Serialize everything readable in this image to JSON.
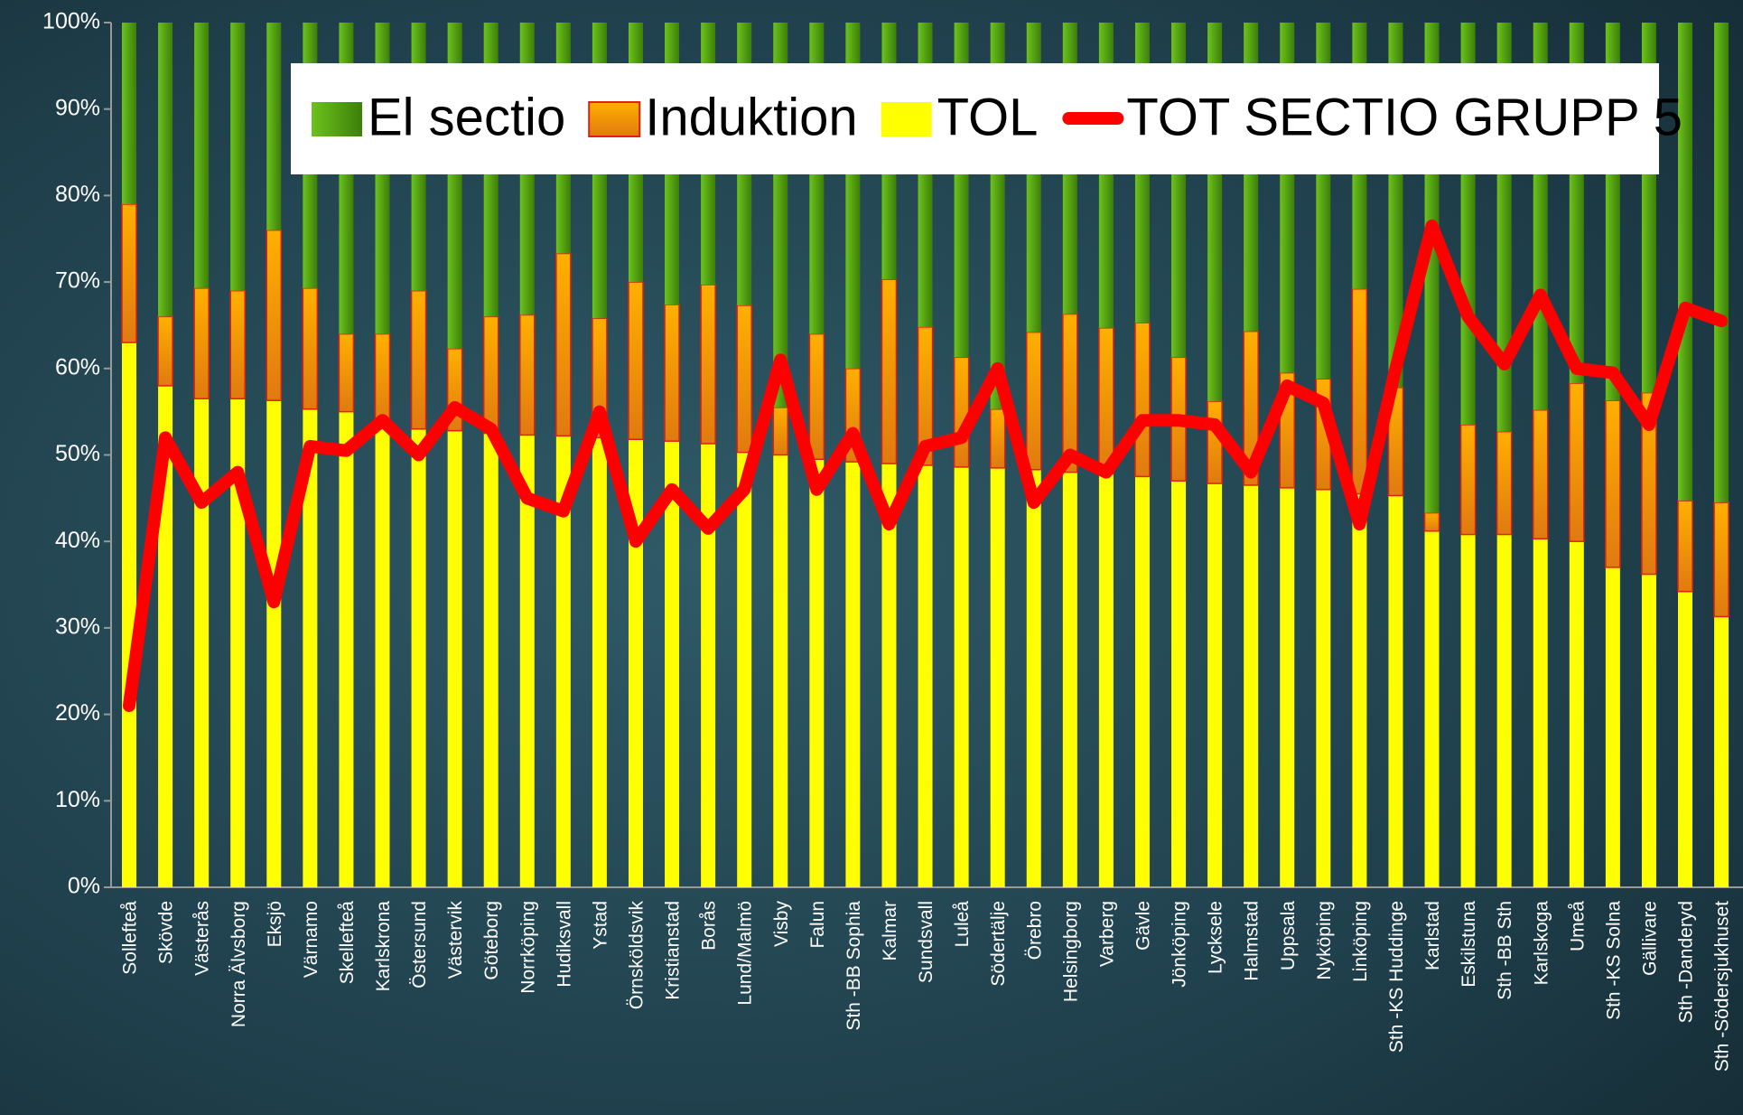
{
  "chart_data": {
    "type": "bar",
    "stacked": true,
    "categories": [
      "Sollefteå",
      "Skövde",
      "Västerås",
      "Norra Älvsborg",
      "Eksjö",
      "Värnamo",
      "Skellefteå",
      "Karlskrona",
      "Östersund",
      "Västervik",
      "Göteborg",
      "Norrköping",
      "Hudiksvall",
      "Ystad",
      "Örnsköldsvik",
      "Kristianstad",
      "Borås",
      "Lund/Malmö",
      "Visby",
      "Falun",
      "Sth -BB Sophia",
      "Kalmar",
      "Sundsvall",
      "Luleå",
      "Södertälje",
      "Örebro",
      "Helsingborg",
      "Varberg",
      "Gävle",
      "Jönköping",
      "Lycksele",
      "Halmstad",
      "Uppsala",
      "Nyköping",
      "Linköping",
      "Sth -KS Huddinge",
      "Karlstad",
      "Eskilstuna",
      "Sth -BB Sth",
      "Karlskoga",
      "Umeå",
      "Sth -KS Solna",
      "Gällivare",
      "Sth -Danderyd",
      "Sth -Södersjukhuset"
    ],
    "series": [
      {
        "name": "El sectio",
        "type": "bar",
        "color": "#4f9a10",
        "values": [
          21,
          34,
          30.7,
          31,
          24,
          30.7,
          36,
          36,
          31,
          37.7,
          34,
          33.8,
          26.7,
          34.2,
          30,
          32.6,
          30.3,
          32.7,
          44.5,
          36,
          40,
          29.7,
          35.2,
          38.7,
          44.7,
          35.8,
          33.7,
          35.3,
          34.7,
          38.7,
          43.8,
          35.7,
          40.5,
          41.2,
          30.8,
          42.2,
          56.7,
          46.5,
          47.3,
          44.8,
          41.7,
          43.7,
          42.8,
          55.3,
          55.5
        ]
      },
      {
        "name": "Induktion",
        "type": "bar",
        "color": "#f39c12",
        "values": [
          16,
          8,
          12.8,
          12.5,
          19.7,
          14,
          9,
          10.5,
          16,
          9.5,
          13.5,
          13.9,
          21.1,
          13.8,
          18.2,
          15.8,
          18.4,
          17,
          5.5,
          14.5,
          10.8,
          21.3,
          16,
          12.7,
          6.8,
          15.9,
          18.3,
          16.9,
          17.8,
          14.3,
          9.5,
          17.8,
          13.3,
          12.8,
          23.7,
          12.5,
          2.1,
          12.7,
          11.9,
          14.9,
          18.3,
          19.3,
          21,
          10.5,
          13.2
        ]
      },
      {
        "name": "TOL",
        "type": "bar",
        "color": "#ffff00",
        "values": [
          63,
          58,
          56.5,
          56.5,
          56.3,
          55.3,
          55,
          53.5,
          53,
          52.8,
          52.5,
          52.3,
          52.2,
          52,
          51.8,
          51.6,
          51.3,
          50.3,
          50,
          49.5,
          49.2,
          49,
          48.8,
          48.6,
          48.5,
          48.3,
          48,
          47.8,
          47.5,
          47,
          46.7,
          46.5,
          46.2,
          46,
          45.5,
          45.3,
          41.2,
          40.8,
          40.8,
          40.3,
          40,
          37,
          36.2,
          34.2,
          31.3
        ]
      },
      {
        "name": "TOT SECTIO GRUPP 5",
        "type": "line",
        "color": "#ff0000",
        "values": [
          21,
          52,
          44.5,
          48,
          33,
          51,
          50.5,
          54,
          50,
          55.5,
          53,
          45,
          43.5,
          55,
          40,
          46,
          41.5,
          46,
          61,
          46,
          52.5,
          42,
          51,
          52,
          60,
          44.5,
          50,
          48,
          54,
          54,
          53.5,
          48,
          58,
          56,
          42,
          60,
          76.5,
          66,
          60.5,
          68.5,
          60,
          59.5,
          53.5,
          67,
          65.5
        ]
      }
    ],
    "ylim": [
      0,
      100
    ],
    "yticks": [
      {
        "value": 0,
        "label": "0%"
      },
      {
        "value": 10,
        "label": "10%"
      },
      {
        "value": 20,
        "label": "20%"
      },
      {
        "value": 30,
        "label": "30%"
      },
      {
        "value": 40,
        "label": "40%"
      },
      {
        "value": 50,
        "label": "50%"
      },
      {
        "value": 60,
        "label": "60%"
      },
      {
        "value": 70,
        "label": "70%"
      },
      {
        "value": 80,
        "label": "80%"
      },
      {
        "value": 90,
        "label": "90%"
      },
      {
        "value": 100,
        "label": "100%"
      }
    ],
    "legend": "top"
  }
}
